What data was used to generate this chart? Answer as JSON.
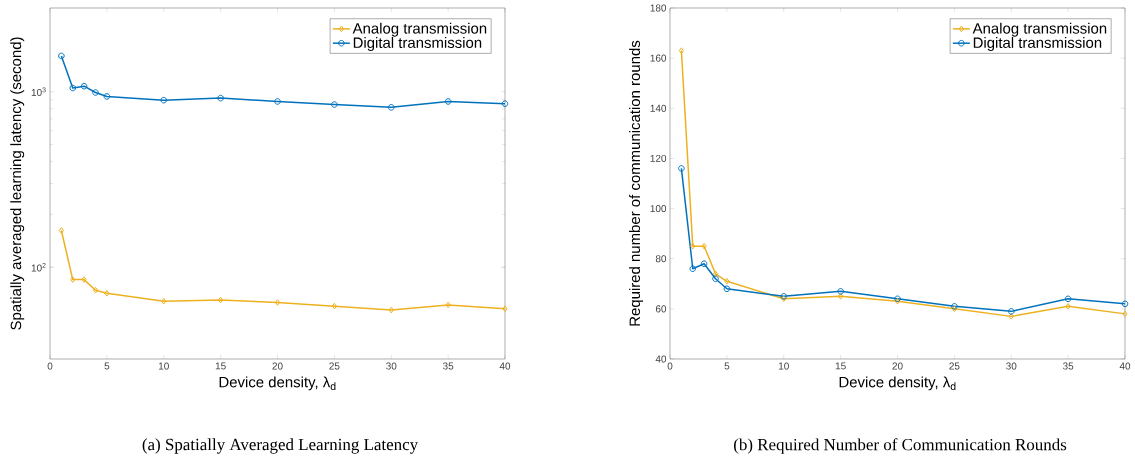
{
  "chart_data": [
    {
      "type": "line",
      "log": "y",
      "xlabel": "Device density, λ$_{d}$",
      "ylabel": "Spatially averaged learning latency (second)",
      "legend": "top right",
      "x": [
        1,
        2,
        3,
        4,
        5,
        10,
        15,
        20,
        25,
        30,
        35,
        40
      ],
      "xlim": [
        0,
        40
      ],
      "xticks": [
        0,
        5,
        10,
        15,
        20,
        25,
        30,
        35,
        40
      ],
      "ylim": [
        30,
        3000
      ],
      "yticks": [
        {
          "value": 100,
          "label": "10$^{2}$"
        },
        {
          "value": 1000,
          "label": "10$^{3}$"
        }
      ],
      "series": [
        {
          "name": "Analog transmission",
          "color": "#edb120",
          "marker": "diamond",
          "values": [
            162,
            85,
            85,
            74,
            71,
            64,
            65,
            63,
            60,
            57,
            61,
            58
          ]
        },
        {
          "name": "Digital transmission",
          "color": "#0072bd",
          "marker": "circle",
          "values": [
            1600,
            1050,
            1075,
            990,
            940,
            895,
            920,
            880,
            845,
            815,
            880,
            855
          ]
        }
      ],
      "annotations": [
        "(a)  Spatially Averaged Learning Latency"
      ]
    },
    {
      "type": "line",
      "xlabel": "Device density, λ$_{d}$",
      "ylabel": "Required number of communication rounds",
      "legend": "top right",
      "x": [
        1,
        2,
        3,
        4,
        5,
        10,
        15,
        20,
        25,
        30,
        35,
        40
      ],
      "xlim": [
        0,
        40
      ],
      "xticks": [
        0,
        5,
        10,
        15,
        20,
        25,
        30,
        35,
        40
      ],
      "ylim": [
        40,
        180
      ],
      "yticks": [
        40,
        60,
        80,
        100,
        120,
        140,
        160,
        180
      ],
      "series": [
        {
          "name": "Analog transmission",
          "color": "#edb120",
          "marker": "diamond",
          "values": [
            163,
            85,
            85,
            74,
            71,
            64,
            65,
            63,
            60,
            57,
            61,
            58
          ]
        },
        {
          "name": "Digital transmission",
          "color": "#0072bd",
          "marker": "circle",
          "values": [
            116,
            76,
            78,
            72,
            68,
            65,
            67,
            64,
            61,
            59,
            64,
            62
          ]
        }
      ],
      "annotations": [
        "(b)  Required Number of Communication Rounds"
      ]
    }
  ]
}
